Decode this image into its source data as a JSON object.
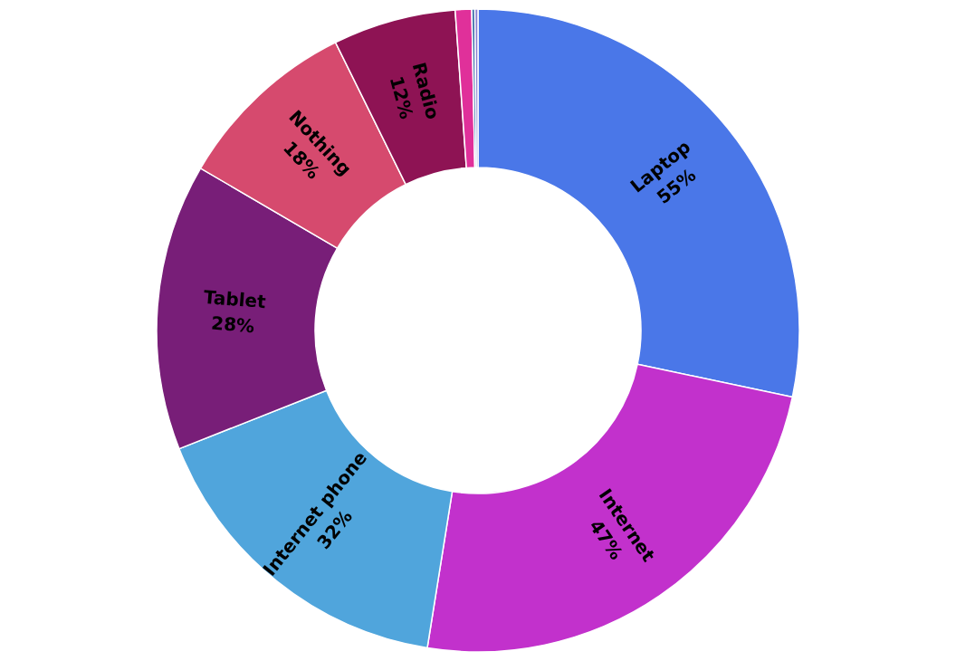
{
  "chart_data": {
    "type": "donut",
    "categories": [
      "Laptop",
      "Internet",
      "Internet phone",
      "Tablet",
      "Nothing",
      "Radio",
      null,
      null,
      null
    ],
    "values": [
      55,
      47,
      32,
      28,
      18,
      12,
      1.6,
      0.3,
      0.3
    ],
    "value_labels": [
      "55%",
      "47%",
      "32%",
      "28%",
      "18%",
      "12%",
      null,
      null,
      null
    ],
    "colors": [
      "#4a77e8",
      "#c231cc",
      "#50a5dc",
      "#781e78",
      "#d64a6e",
      "#8e1354",
      "#e0309a",
      "#3c6ea8",
      "#8a80d0"
    ],
    "legend": false
  }
}
